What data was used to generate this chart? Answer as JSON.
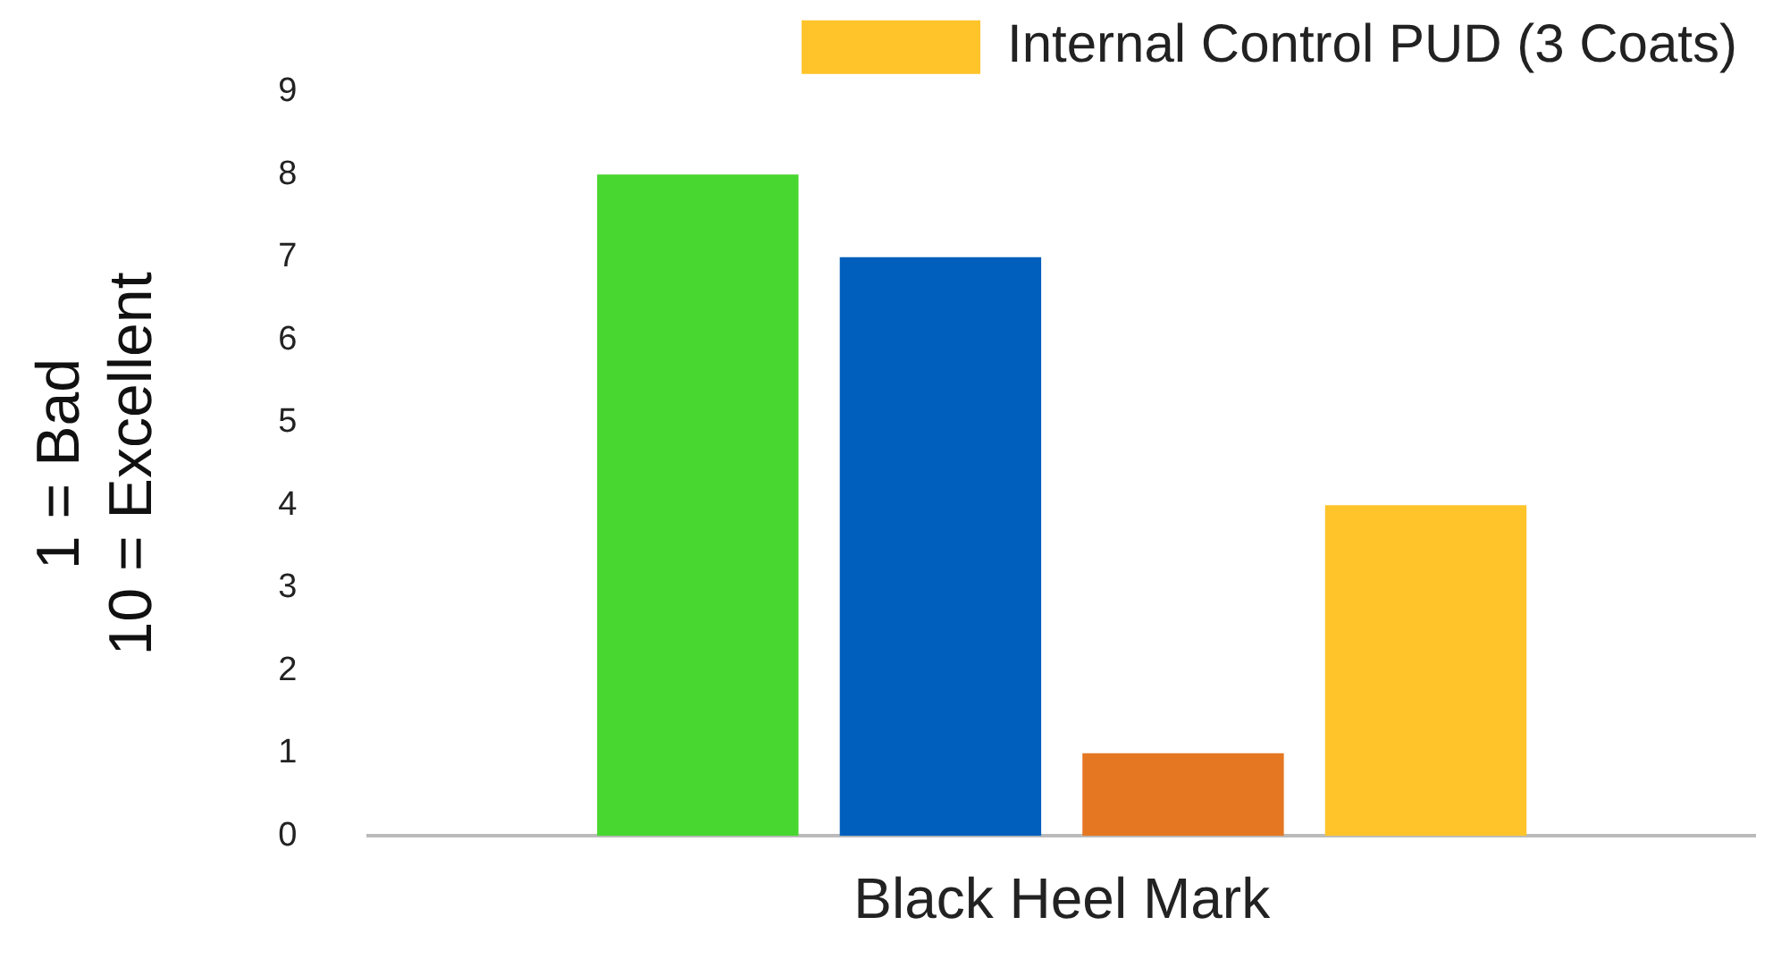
{
  "chart_data": {
    "type": "bar",
    "ylabel": "1 = Bad\n10 = Excellent",
    "categories": [
      "Black Heel Mark"
    ],
    "series": [
      {
        "color": "#48d630",
        "values": [
          8
        ]
      },
      {
        "color": "#005fbc",
        "values": [
          7
        ]
      },
      {
        "color": "#e57722",
        "values": [
          1
        ]
      },
      {
        "name": "Internal Control PUD (3 Coats)",
        "color": "#ffc42a",
        "values": [
          4
        ]
      }
    ],
    "ylim": [
      0,
      9
    ],
    "yticks": [
      0,
      1,
      2,
      3,
      4,
      5,
      6,
      7,
      8,
      9
    ],
    "grid": false,
    "legend": "top right"
  }
}
